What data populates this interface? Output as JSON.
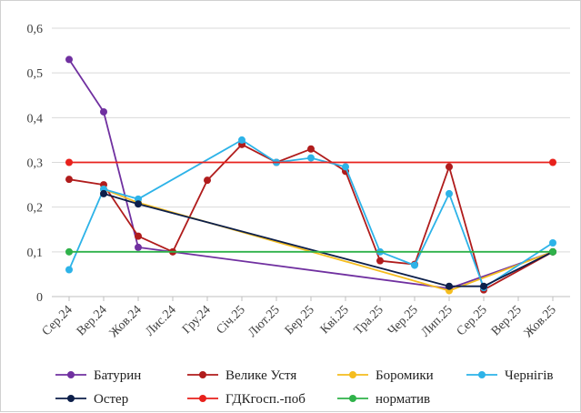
{
  "chart_data": {
    "type": "line",
    "title": "",
    "xlabel": "",
    "ylabel": "",
    "ylim": [
      0,
      0.6
    ],
    "yticks": [
      0,
      0.1,
      0.2,
      0.3,
      0.4,
      0.5,
      0.6
    ],
    "ytick_labels": [
      "0",
      "0,1",
      "0,2",
      "0,3",
      "0,4",
      "0,5",
      "0,6"
    ],
    "categories": [
      "Сер.24",
      "Вер.24",
      "Жов.24",
      "Лис.24",
      "Гру.24",
      "Січ.25",
      "Лют.25",
      "Бер.25",
      "Кві.25",
      "Тра.25",
      "Чер.25",
      "Лип.25",
      "Сер.25",
      "Вер.25",
      "Жов.25"
    ],
    "grid": "horizontal",
    "legend_position": "bottom",
    "series": [
      {
        "name": "Батурин",
        "color": "#7030a0",
        "values": [
          0.53,
          0.413,
          0.11,
          null,
          null,
          null,
          null,
          null,
          null,
          null,
          null,
          0.018,
          null,
          null,
          0.1
        ]
      },
      {
        "name": "Велике Устя",
        "color": "#b01c1c",
        "values": [
          0.262,
          0.25,
          0.135,
          0.1,
          0.26,
          0.34,
          0.3,
          0.33,
          0.28,
          0.08,
          0.072,
          0.29,
          0.015,
          null,
          0.1
        ]
      },
      {
        "name": "Боромики",
        "color": "#f5bd1e",
        "values": [
          null,
          0.24,
          0.21,
          null,
          null,
          null,
          null,
          null,
          null,
          null,
          null,
          0.013,
          null,
          null,
          0.1
        ]
      },
      {
        "name": "Чернігів",
        "color": "#2db3e8",
        "values": [
          0.06,
          0.24,
          0.218,
          null,
          null,
          0.35,
          0.3,
          0.31,
          0.29,
          0.1,
          0.07,
          0.23,
          0.02,
          null,
          0.12
        ]
      },
      {
        "name": "Остер",
        "color": "#0d1f4a",
        "values": [
          null,
          0.23,
          0.207,
          null,
          null,
          null,
          null,
          null,
          null,
          null,
          null,
          0.023,
          0.023,
          null,
          0.1
        ]
      },
      {
        "name": "ГДКгосп.-поб",
        "color": "#e8211c",
        "values": [
          0.3,
          null,
          null,
          null,
          null,
          null,
          null,
          null,
          null,
          null,
          null,
          null,
          null,
          null,
          0.3
        ]
      },
      {
        "name": "норматив",
        "color": "#2fb24a",
        "values": [
          0.1,
          null,
          null,
          null,
          null,
          null,
          null,
          null,
          null,
          null,
          null,
          null,
          null,
          null,
          0.1
        ]
      }
    ]
  }
}
